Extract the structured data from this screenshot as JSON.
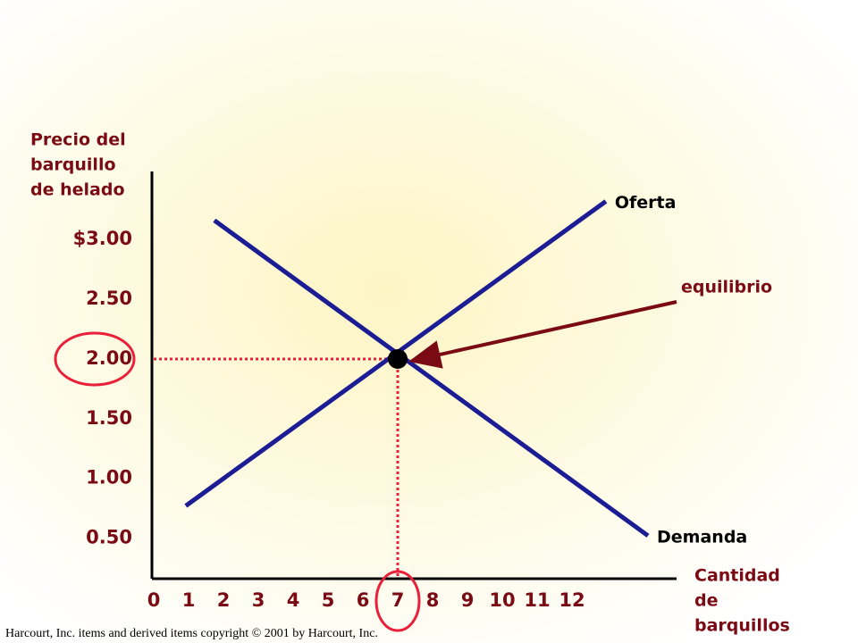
{
  "chart_data": {
    "type": "line",
    "ylabel": [
      "Precio del",
      "barquillo",
      "de helado"
    ],
    "xlabel": [
      "Cantidad",
      "de",
      "barquillos"
    ],
    "xlim": [
      0,
      15
    ],
    "ylim": [
      0.16,
      3.57
    ],
    "xticks": [
      0,
      1,
      2,
      3,
      4,
      5,
      6,
      7,
      8,
      9,
      10,
      11,
      12
    ],
    "yticks": [
      {
        "value": 3,
        "label": "$3.00"
      },
      {
        "value": 2.5,
        "label": "2.50"
      },
      {
        "value": 2,
        "label": "2.00"
      },
      {
        "value": 1.5,
        "label": "1.50"
      },
      {
        "value": 1,
        "label": "1.00"
      },
      {
        "value": 0.5,
        "label": "0.50"
      }
    ],
    "series": [
      {
        "name": "Oferta",
        "color": "#1c1c94",
        "x": [
          0.92,
          12.97
        ],
        "values": [
          0.77,
          3.32
        ]
      },
      {
        "name": "Demanda",
        "color": "#1c1c94",
        "x": [
          1.74,
          14.18
        ],
        "values": [
          3.16,
          0.52
        ]
      }
    ],
    "equilibrium": {
      "label": "equilibrio",
      "x": 7,
      "y": 2
    },
    "footer": "Harcourt, Inc. items and derived items copyright © 2001 by Harcourt, Inc."
  }
}
